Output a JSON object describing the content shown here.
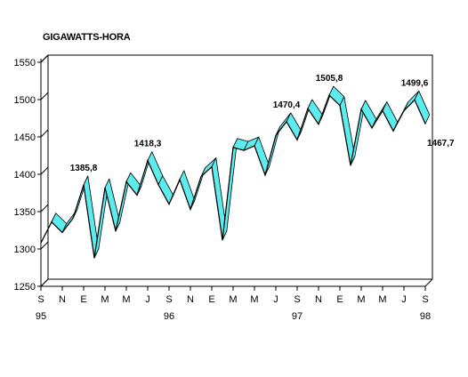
{
  "chart_data": {
    "type": "line",
    "title": "GIGAWATTS-HORA",
    "xlabel": "",
    "ylabel": "",
    "ylim": [
      1250,
      1550
    ],
    "yticks": [
      1250,
      1300,
      1350,
      1400,
      1450,
      1500,
      1550
    ],
    "x": [
      "S 95",
      "O 95",
      "N 95",
      "D 95",
      "E 96",
      "F 96",
      "M 96",
      "A 96",
      "M 96",
      "J 96",
      "J 96",
      "A 96",
      "S 96",
      "O 96",
      "N 96",
      "D 96",
      "E 97",
      "F 97",
      "M 97",
      "A 97",
      "M 97",
      "J 97",
      "J 97",
      "A 97",
      "S 97",
      "O 97",
      "N 97",
      "D 97",
      "E 98",
      "F 98",
      "M 98",
      "A 98",
      "M 98",
      "J 98",
      "J 98",
      "A 98",
      "S 98"
    ],
    "tick_labels": [
      "S",
      "N",
      "E",
      "M",
      "M",
      "J",
      "S",
      "N",
      "E",
      "M",
      "M",
      "J",
      "S",
      "N",
      "E",
      "M",
      "M",
      "J",
      "S"
    ],
    "year_labels": [
      {
        "label": "95",
        "index": 0
      },
      {
        "label": "96",
        "index": 12
      },
      {
        "label": "97",
        "index": 24
      },
      {
        "label": "98",
        "index": 36
      }
    ],
    "series": [
      {
        "values": [
          1308,
          1336,
          1322,
          1341,
          1385.8,
          1288,
          1382,
          1324,
          1390,
          1372,
          1418.3,
          1386,
          1360,
          1393,
          1353,
          1397,
          1410,
          1312,
          1436,
          1432,
          1438,
          1399,
          1452,
          1470.4,
          1446,
          1488,
          1467,
          1505.8,
          1492,
          1412,
          1487,
          1462,
          1485,
          1458,
          1485,
          1499.6,
          1467.7
        ]
      }
    ],
    "annotations": [
      {
        "text": "1385,8",
        "index": 4
      },
      {
        "text": "1418,3",
        "index": 10
      },
      {
        "text": "1470,4",
        "index": 23
      },
      {
        "text": "1505,8",
        "index": 27
      },
      {
        "text": "1499,6",
        "index": 35
      },
      {
        "text": "1467,7",
        "index": 36
      }
    ],
    "grid": false,
    "colors": {
      "band": "#5cecee",
      "line": "#000000"
    }
  }
}
